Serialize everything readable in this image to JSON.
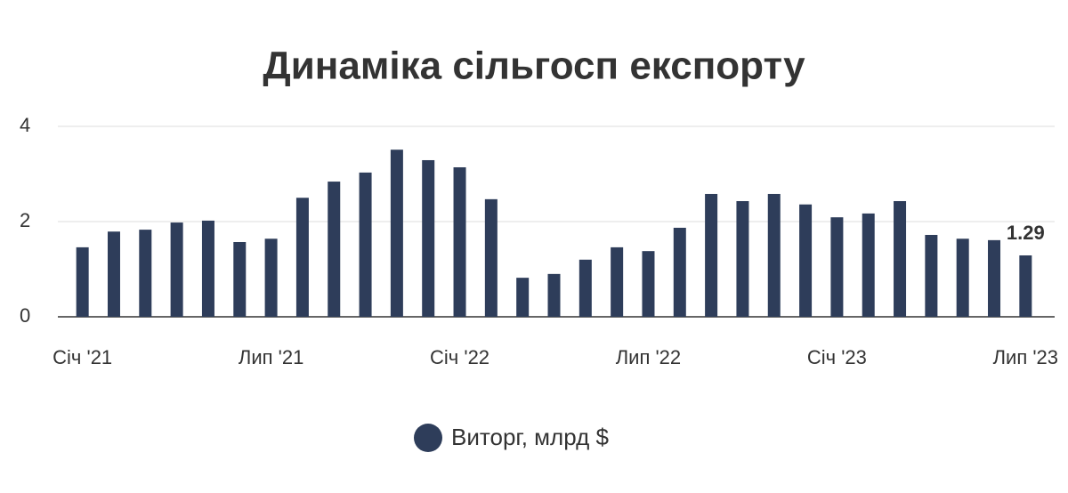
{
  "chart_data": {
    "type": "bar",
    "title": "Динаміка сільгосп експорту",
    "categories": [
      "Січ '21",
      null,
      null,
      null,
      null,
      null,
      "Лип '21",
      null,
      null,
      null,
      null,
      null,
      "Січ '22",
      null,
      null,
      null,
      null,
      null,
      "Лип '22",
      null,
      null,
      null,
      null,
      null,
      "Січ '23",
      null,
      null,
      null,
      null,
      null,
      "Лип '23"
    ],
    "series": [
      {
        "name": "Виторг, млрд $",
        "color": "#2e3d5a",
        "values": [
          1.46,
          1.79,
          1.83,
          1.98,
          2.02,
          1.57,
          1.64,
          2.5,
          2.84,
          3.03,
          3.51,
          3.29,
          3.14,
          2.47,
          0.82,
          0.9,
          1.2,
          1.46,
          1.38,
          1.87,
          2.58,
          2.43,
          2.58,
          2.36,
          2.09,
          2.17,
          2.43,
          1.72,
          1.64,
          1.61,
          1.29
        ]
      }
    ],
    "ylim": [
      0,
      4
    ],
    "yticks": [
      0,
      2,
      4
    ],
    "grid": true
  }
}
